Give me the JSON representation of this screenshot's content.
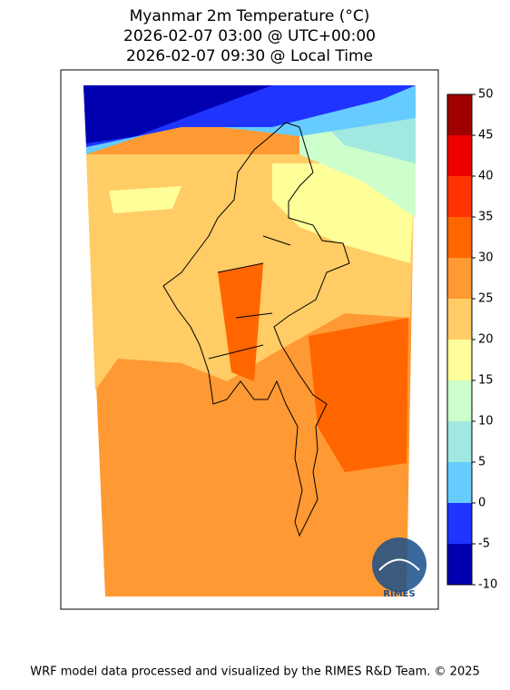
{
  "title": [
    "Myanmar 2m Temperature (°C)",
    "2026-02-07 03:00 @ UTC+00:00",
    "2026-02-07 09:30 @ Local Time"
  ],
  "colorbar": {
    "bounds": [
      -10,
      -5,
      0,
      5,
      10,
      15,
      20,
      25,
      30,
      35,
      40,
      45,
      50
    ],
    "colors": [
      "#0000b0",
      "#1f35ff",
      "#66ccff",
      "#a0e8e0",
      "#ccffcc",
      "#ffff99",
      "#ffcc66",
      "#ff9933",
      "#ff6600",
      "#ff3300",
      "#ee0000",
      "#a00000"
    ]
  },
  "logo": "RIMES",
  "footer": "WRF model data processed and visualized by the RIMES R&D Team. © 2025"
}
